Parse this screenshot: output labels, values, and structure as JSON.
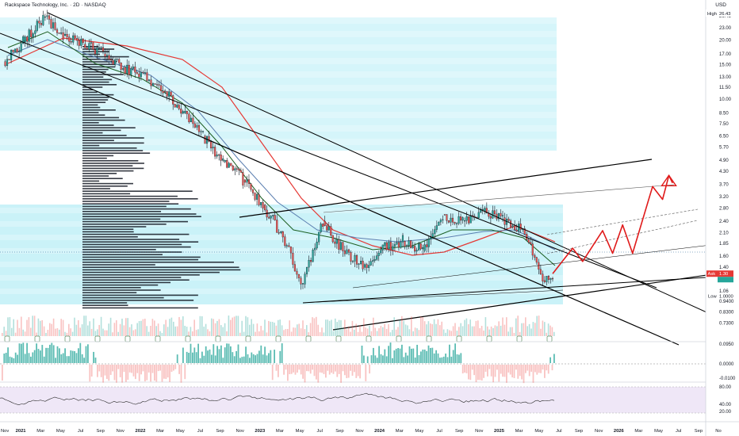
{
  "header": {
    "title": "Rackspace Technology, Inc. · 2D · NASDAQ",
    "currency": "USD"
  },
  "colors": {
    "candle_up": "#26a69a",
    "candle_down": "#ef5350",
    "ma_red": "#e53935",
    "ma_green": "#1b5e20",
    "ma_blue": "#5b7fb0",
    "ma_teal": "#2e9e96",
    "zone": "#b3ecf5",
    "drawing_red": "#e01b1b",
    "trend_line": "#000000",
    "profile": "#131722",
    "rsi_bg": "#efe7f7",
    "rsi_line": "#2b2b2b"
  },
  "price_labels": {
    "high_label": "High",
    "high_value": "26.43",
    "ask_label": "Ask",
    "ask_value": "1.30",
    "low_label": "Low",
    "low_value": "1.0000"
  },
  "chart_data": {
    "type": "candlestick",
    "title": "Rackspace Technology, Inc. · 2D · NASDAQ",
    "y_scale": "log",
    "ylim": [
      0.65,
      28
    ],
    "y_ticks": [
      "26.43",
      "23.00",
      "20.00",
      "17.00",
      "15.00",
      "13.00",
      "11.50",
      "10.00",
      "8.50",
      "7.50",
      "6.50",
      "5.70",
      "4.90",
      "4.30",
      "3.70",
      "3.20",
      "2.80",
      "2.40",
      "2.10",
      "1.85",
      "1.60",
      "1.40",
      "1.30",
      "1.06",
      "0.9400",
      "0.8300",
      "0.7300"
    ],
    "x_ticks": [
      "Nov",
      "2021",
      "Mar",
      "May",
      "Jul",
      "Sep",
      "Nov",
      "2022",
      "Mar",
      "May",
      "Jul",
      "Sep",
      "Nov",
      "2023",
      "Mar",
      "May",
      "Jul",
      "Sep",
      "Nov",
      "2024",
      "Mar",
      "May",
      "Jul",
      "Sep",
      "Nov",
      "2025",
      "Mar",
      "May",
      "Jul",
      "Sep",
      "Nov",
      "2026",
      "Mar",
      "May",
      "Jul",
      "Sep",
      "No"
    ],
    "price_path": [
      {
        "date": "2020-11",
        "close": 15.5
      },
      {
        "date": "2021-01",
        "close": 19.5
      },
      {
        "date": "2021-03",
        "close": 26.0
      },
      {
        "date": "2021-05",
        "close": 21.0
      },
      {
        "date": "2021-07",
        "close": 19.0
      },
      {
        "date": "2021-09",
        "close": 17.0
      },
      {
        "date": "2021-11",
        "close": 14.5
      },
      {
        "date": "2022-01",
        "close": 13.5
      },
      {
        "date": "2022-03",
        "close": 11.0
      },
      {
        "date": "2022-05",
        "close": 8.5
      },
      {
        "date": "2022-07",
        "close": 6.5
      },
      {
        "date": "2022-09",
        "close": 4.8
      },
      {
        "date": "2022-11",
        "close": 3.9
      },
      {
        "date": "2023-01",
        "close": 2.9
      },
      {
        "date": "2023-03",
        "close": 2.0
      },
      {
        "date": "2023-05",
        "close": 1.15
      },
      {
        "date": "2023-07",
        "close": 2.4
      },
      {
        "date": "2023-09",
        "close": 1.7
      },
      {
        "date": "2023-11",
        "close": 1.4
      },
      {
        "date": "2024-01",
        "close": 1.8
      },
      {
        "date": "2024-03",
        "close": 1.9
      },
      {
        "date": "2024-05",
        "close": 1.7
      },
      {
        "date": "2024-07",
        "close": 2.6
      },
      {
        "date": "2024-09",
        "close": 2.4
      },
      {
        "date": "2024-11",
        "close": 2.7
      },
      {
        "date": "2025-01",
        "close": 2.5
      },
      {
        "date": "2025-03",
        "close": 2.2
      },
      {
        "date": "2025-05",
        "close": 1.2
      },
      {
        "date": "2025-06",
        "close": 1.3
      }
    ],
    "projection_path": [
      {
        "date": "2025-06",
        "value": 1.3
      },
      {
        "date": "2025-08",
        "value": 1.75
      },
      {
        "date": "2025-09",
        "value": 1.5
      },
      {
        "date": "2025-11",
        "value": 2.15
      },
      {
        "date": "2025-12",
        "value": 1.65
      },
      {
        "date": "2026-01",
        "value": 2.3
      },
      {
        "date": "2026-02",
        "value": 1.65
      },
      {
        "date": "2026-04",
        "value": 3.6
      },
      {
        "date": "2026-05",
        "value": 3.1
      },
      {
        "date": "2026-05-20",
        "value": 4.1
      },
      {
        "date": "2026-06",
        "value": 3.75
      }
    ],
    "indicators": [
      "volume",
      "oscillator",
      "RSI"
    ],
    "oscillator_ticks": [
      "0.0950",
      "0.0000",
      "-0.0100"
    ],
    "rsi_ticks": [
      "80.00",
      "40.00",
      "20.00"
    ],
    "grid": false
  }
}
